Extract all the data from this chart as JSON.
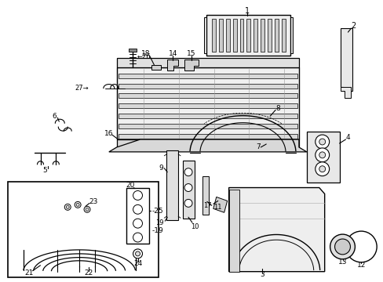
{
  "bg_color": "#ffffff",
  "lc": "#000000",
  "gray1": "#aaaaaa",
  "gray2": "#cccccc",
  "gray3": "#e8e8e8"
}
